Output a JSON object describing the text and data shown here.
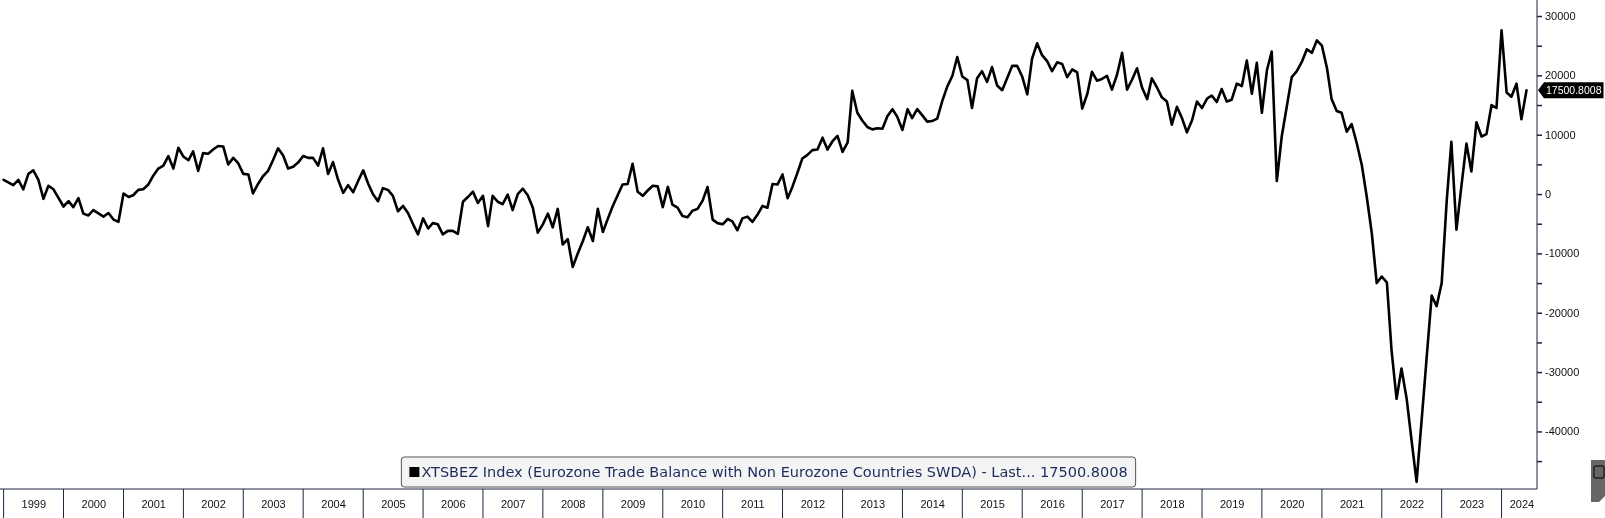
{
  "chart_data": {
    "type": "line",
    "x": [
      "1999-01",
      "1999-03",
      "1999-04",
      "1999-05",
      "1999-06",
      "1999-07",
      "1999-08",
      "1999-09",
      "1999-10",
      "1999-11",
      "2000-01",
      "2000-02",
      "2000-03",
      "2000-04",
      "2000-05",
      "2000-06",
      "2000-07",
      "2000-09",
      "2000-10",
      "2000-11",
      "2000-12",
      "2001-01",
      "2001-02",
      "2001-03",
      "2001-04",
      "2001-05",
      "2001-06",
      "2001-07",
      "2001-08",
      "2001-09",
      "2001-10",
      "2001-11",
      "2001-12",
      "2002-01",
      "2002-02",
      "2002-03",
      "2002-04",
      "2002-05",
      "2002-06",
      "2002-07",
      "2002-08",
      "2002-09",
      "2002-10",
      "2002-11",
      "2002-12",
      "2003-01",
      "2003-02",
      "2003-03",
      "2003-04",
      "2003-05",
      "2003-06",
      "2003-07",
      "2003-08",
      "2003-09",
      "2003-10",
      "2003-11",
      "2003-12",
      "2004-01",
      "2004-02",
      "2004-03",
      "2004-04",
      "2004-05",
      "2004-06",
      "2004-07",
      "2004-08",
      "2004-09",
      "2004-10",
      "2004-11",
      "2004-12",
      "2005-01",
      "2005-02",
      "2005-03",
      "2005-04",
      "2005-05",
      "2005-06",
      "2005-07",
      "2005-08",
      "2005-09",
      "2005-10",
      "2005-11",
      "2005-12",
      "2006-01",
      "2006-02",
      "2006-03",
      "2006-04",
      "2006-05",
      "2006-06",
      "2006-07",
      "2006-08",
      "2006-09",
      "2006-10",
      "2006-11",
      "2006-12",
      "2007-01",
      "2007-02",
      "2007-03",
      "2007-04",
      "2007-05",
      "2007-06",
      "2007-07",
      "2007-08",
      "2007-09",
      "2007-10",
      "2007-11",
      "2007-12",
      "2008-01",
      "2008-02",
      "2008-03",
      "2008-04",
      "2008-05",
      "2008-06",
      "2008-07",
      "2008-08",
      "2008-09",
      "2008-10",
      "2008-11",
      "2008-12",
      "2009-01",
      "2009-02",
      "2009-03",
      "2009-04",
      "2009-05",
      "2009-06",
      "2009-07",
      "2009-08",
      "2009-09",
      "2009-10",
      "2009-11",
      "2009-12",
      "2010-01",
      "2010-02",
      "2010-03",
      "2010-04",
      "2010-05",
      "2010-06",
      "2010-07",
      "2010-08",
      "2010-09",
      "2010-10",
      "2010-11",
      "2010-12",
      "2011-01",
      "2011-02",
      "2011-03",
      "2011-04",
      "2011-05",
      "2011-06",
      "2011-07",
      "2011-08",
      "2011-09",
      "2011-10",
      "2011-11",
      "2011-12",
      "2012-01",
      "2012-02",
      "2012-03",
      "2012-04",
      "2012-05",
      "2012-06",
      "2012-07",
      "2012-08",
      "2012-09",
      "2012-10",
      "2012-11",
      "2012-12",
      "2013-01",
      "2013-02",
      "2013-03",
      "2013-04",
      "2013-05",
      "2013-06",
      "2013-07",
      "2013-08",
      "2013-09",
      "2013-10",
      "2013-11",
      "2013-12",
      "2014-01",
      "2014-02",
      "2014-03",
      "2014-04",
      "2014-05",
      "2014-06",
      "2014-07",
      "2014-08",
      "2014-09",
      "2014-10",
      "2014-11",
      "2014-12",
      "2015-01",
      "2015-02",
      "2015-03",
      "2015-04",
      "2015-05",
      "2015-06",
      "2015-07",
      "2015-08",
      "2015-09",
      "2015-10",
      "2015-11",
      "2015-12",
      "2016-01",
      "2016-02",
      "2016-03",
      "2016-04",
      "2016-05",
      "2016-06",
      "2016-07",
      "2016-08",
      "2016-09",
      "2016-10",
      "2016-11",
      "2016-12",
      "2017-01",
      "2017-02",
      "2017-03",
      "2017-04",
      "2017-05",
      "2017-06",
      "2017-07",
      "2017-08",
      "2017-09",
      "2017-10",
      "2017-11",
      "2017-12",
      "2018-01",
      "2018-02",
      "2018-03",
      "2018-04",
      "2018-05",
      "2018-06",
      "2018-07",
      "2018-08",
      "2018-09",
      "2018-10",
      "2018-11",
      "2018-12",
      "2019-01",
      "2019-02",
      "2019-03",
      "2019-04",
      "2019-05",
      "2019-06",
      "2019-07",
      "2019-08",
      "2019-09",
      "2019-10",
      "2019-11",
      "2019-12",
      "2020-01",
      "2020-02",
      "2020-03",
      "2020-04",
      "2020-05",
      "2020-06",
      "2020-07",
      "2020-08",
      "2020-09",
      "2020-10",
      "2020-11",
      "2020-12",
      "2021-01",
      "2021-02",
      "2021-03",
      "2021-04",
      "2021-05",
      "2021-06",
      "2021-07",
      "2021-08",
      "2021-09",
      "2021-10",
      "2021-11",
      "2021-12",
      "2022-01",
      "2022-02",
      "2022-03",
      "2022-04",
      "2022-05",
      "2022-06",
      "2022-07",
      "2022-08",
      "2022-09",
      "2022-10",
      "2022-11",
      "2022-12",
      "2023-01",
      "2023-02",
      "2023-03",
      "2023-04",
      "2023-05",
      "2023-06",
      "2023-07",
      "2023-08",
      "2023-09",
      "2023-10",
      "2023-11",
      "2023-12",
      "2024-01",
      "2024-02",
      "2024-03",
      "2024-04",
      "2024-05",
      "2024-06"
    ],
    "series": [
      {
        "name": "XTSBEZ Index (Eurozone Trade Balance with Non Eurozone Countries SWDA) - Last... 17500.8008",
        "color": "#000000",
        "values": [
          2400,
          1500,
          2400,
          800,
          3400,
          4000,
          2400,
          -800,
          1400,
          800,
          -2100,
          -1200,
          -2200,
          -700,
          -3300,
          -3600,
          -2700,
          -3800,
          -3200,
          -4300,
          -4700,
          100,
          -500,
          -200,
          700,
          800,
          1600,
          3100,
          4300,
          4800,
          6400,
          4300,
          7800,
          6300,
          5700,
          7200,
          3900,
          6900,
          6800,
          7500,
          8100,
          8000,
          5000,
          6100,
          5200,
          3400,
          3300,
          100,
          1700,
          3000,
          3900,
          5700,
          7700,
          6500,
          4300,
          4600,
          5300,
          6400,
          6100,
          6100,
          4800,
          7700,
          3400,
          5400,
          2400,
          200,
          1500,
          300,
          2200,
          4000,
          1700,
          0,
          -1200,
          1000,
          700,
          -300,
          -2900,
          -2000,
          -3200,
          -5100,
          -6800,
          -4100,
          -5800,
          -4900,
          -5100,
          -6800,
          -6200,
          -6200,
          -6700,
          -1300,
          -500,
          400,
          -1500,
          -300,
          -5400,
          -300,
          -1300,
          -1700,
          -100,
          -2700,
          0,
          900,
          -200,
          -2300,
          -6500,
          -5100,
          -3300,
          -5600,
          -2500,
          -8500,
          -7600,
          -12300,
          -10000,
          -7900,
          -5600,
          -7900,
          -2500,
          -6400,
          -4100,
          -2100,
          -200,
          1600,
          1700,
          5100,
          400,
          -300,
          600,
          1400,
          1300,
          -2200,
          1200,
          -1800,
          -2300,
          -3700,
          -3900,
          -2800,
          -2500,
          -1100,
          1200,
          -4300,
          -4900,
          -5100,
          -4200,
          -4600,
          -6100,
          -4100,
          -3800,
          -4700,
          -3500,
          -2000,
          -2300,
          1700,
          1600,
          3300,
          -700,
          1200,
          3600,
          6000,
          6600,
          7400,
          7500,
          9500,
          7500,
          8900,
          9800,
          7100,
          8700,
          17400,
          13700,
          12400,
          11300,
          10900,
          11100,
          11000,
          13100,
          14300,
          13000,
          10800,
          14300,
          12800,
          14300,
          13300,
          12200,
          12300,
          12700,
          15700,
          18100,
          19900,
          23100,
          19800,
          19200,
          14500,
          19500,
          20700,
          18900,
          21400,
          18300,
          17500,
          19500,
          21600,
          21600,
          19800,
          16800,
          22800,
          25400,
          23400,
          22400,
          20700,
          22200,
          21900,
          19700,
          21000,
          20500,
          14400,
          16900,
          20600,
          19100,
          19400,
          19900,
          17600,
          20100,
          23800,
          17600,
          19300,
          21200,
          17900,
          16000,
          19500,
          18000,
          16300,
          15600,
          11700,
          14700,
          12800,
          10400,
          12400,
          15600,
          14500,
          16100,
          16600,
          15500,
          17700,
          15600,
          15900,
          18600,
          18200,
          22500,
          16900,
          22100,
          13700,
          20900,
          24000,
          2200,
          9700,
          14800,
          19700,
          20700,
          22300,
          24400,
          23800,
          25900,
          25000,
          21200,
          16000,
          14000,
          13700,
          10500,
          11800,
          8600,
          4900,
          -400,
          -6600,
          -15000,
          -13900,
          -14900,
          -26200,
          -34500,
          -29400,
          -34400,
          -41400,
          -48500,
          -38000,
          -27700,
          -17100,
          -18900,
          -15000,
          -1000,
          8800,
          -6000,
          1300,
          8500,
          3800,
          12100,
          9700,
          10100,
          15000,
          14500,
          27600,
          17100,
          16400,
          18600,
          12600,
          17500.8008
        ]
      }
    ],
    "xlim": [
      "1998-12-10",
      "2024-08-04"
    ],
    "xticks": [
      {
        "value": "1999-07-01",
        "label": "1999"
      },
      {
        "value": "2000-07-01",
        "label": "2000"
      },
      {
        "value": "2001-07-01",
        "label": "2001"
      },
      {
        "value": "2002-07-01",
        "label": "2002"
      },
      {
        "value": "2003-07-01",
        "label": "2003"
      },
      {
        "value": "2004-07-01",
        "label": "2004"
      },
      {
        "value": "2005-07-01",
        "label": "2005"
      },
      {
        "value": "2006-07-01",
        "label": "2006"
      },
      {
        "value": "2007-07-01",
        "label": "2007"
      },
      {
        "value": "2008-07-01",
        "label": "2008"
      },
      {
        "value": "2009-07-01",
        "label": "2009"
      },
      {
        "value": "2010-07-01",
        "label": "2010"
      },
      {
        "value": "2011-07-01",
        "label": "2011"
      },
      {
        "value": "2012-07-01",
        "label": "2012"
      },
      {
        "value": "2013-07-01",
        "label": "2013"
      },
      {
        "value": "2014-07-01",
        "label": "2014"
      },
      {
        "value": "2015-07-01",
        "label": "2015"
      },
      {
        "value": "2016-07-01",
        "label": "2016"
      },
      {
        "value": "2017-07-01",
        "label": "2017"
      },
      {
        "value": "2018-07-01",
        "label": "2018"
      },
      {
        "value": "2019-07-01",
        "label": "2019"
      },
      {
        "value": "2020-07-01",
        "label": "2020"
      },
      {
        "value": "2021-07-01",
        "label": "2021"
      },
      {
        "value": "2022-07-01",
        "label": "2022"
      },
      {
        "value": "2023-07-01",
        "label": "2023"
      },
      {
        "value": "2024-05-01",
        "label": "2024"
      }
    ],
    "ylim": [
      -49700,
      32700
    ],
    "yticks": [
      30000,
      {
        "value": 25000,
        "label": null
      },
      20000,
      {
        "value": 15000,
        "label": null
      },
      10000,
      {
        "value": 5000,
        "label": null
      },
      0,
      {
        "value": -5000,
        "label": null
      },
      -10000,
      {
        "value": -15000,
        "label": null
      },
      -20000,
      {
        "value": -25000,
        "label": null
      },
      -30000,
      {
        "value": -35000,
        "label": null
      },
      -40000,
      {
        "value": -45000,
        "label": null
      }
    ],
    "annotations": [
      {
        "text": "17500.8008",
        "x": "2024-06",
        "y": 17500.8008
      }
    ],
    "legend": "bottom",
    "grid": false,
    "line_style": "solid",
    "marker": "none"
  }
}
